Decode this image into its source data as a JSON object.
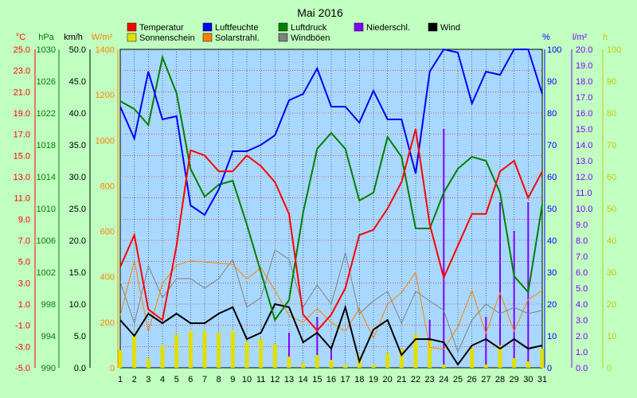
{
  "chart_data": {
    "type": "line",
    "title": "Mai 2016",
    "background": "#c0ffc0",
    "plot_background": "#a8d8ff",
    "x": [
      1,
      2,
      3,
      4,
      5,
      6,
      7,
      8,
      9,
      10,
      11,
      12,
      13,
      14,
      15,
      16,
      17,
      18,
      19,
      20,
      21,
      22,
      23,
      24,
      25,
      26,
      27,
      28,
      29,
      30,
      31
    ],
    "xlim": [
      1,
      31
    ],
    "grid": true,
    "legend": [
      {
        "label": "Temperatur",
        "color": "#ff0000"
      },
      {
        "label": "Luftfeuchte",
        "color": "#0000ff"
      },
      {
        "label": "Luftdruck",
        "color": "#008000"
      },
      {
        "label": "Niederschl.",
        "color": "#8000ff"
      },
      {
        "label": "Wind",
        "color": "#000000"
      },
      {
        "label": "Sonnenschein",
        "color": "#e0e000"
      },
      {
        "label": "Solarstrahl.",
        "color": "#ff8000"
      },
      {
        "label": "Windböen",
        "color": "#808080"
      }
    ],
    "axes": [
      {
        "unit": "°C",
        "color": "#ff0000",
        "ticks": [
          "25.0",
          "23.0",
          "21.0",
          "19.0",
          "17.0",
          "15.0",
          "13.0",
          "11.0",
          "9.0",
          "7.0",
          "5.0",
          "3.0",
          "1.0",
          "-1.0",
          "-3.0",
          "-5.0"
        ]
      },
      {
        "unit": "hPa",
        "color": "#008000",
        "ticks": [
          "1030",
          "1026",
          "1022",
          "1018",
          "1014",
          "1010",
          "1006",
          "1002",
          "998",
          "994",
          "990"
        ]
      },
      {
        "unit": "km/h",
        "color": "#000000",
        "ticks": [
          "50.0",
          "45.0",
          "40.0",
          "35.0",
          "30.0",
          "25.0",
          "20.0",
          "15.0",
          "10.0",
          "5.0",
          "0.0"
        ]
      },
      {
        "unit": "W/m²",
        "color": "#ff8000",
        "ticks": [
          "1400",
          "1200",
          "1000",
          "800",
          "600",
          "400",
          "200",
          "0"
        ]
      },
      {
        "unit": "%",
        "color": "#0000ff",
        "ticks": [
          "100",
          "90",
          "80",
          "70",
          "60",
          "50",
          "40",
          "30",
          "20",
          "10",
          "0"
        ]
      },
      {
        "unit": "l/m²",
        "color": "#8000ff",
        "ticks": [
          "20.0",
          "19.0",
          "18.0",
          "17.0",
          "16.0",
          "15.0",
          "14.0",
          "13.0",
          "12.0",
          "11.0",
          "10.0",
          "9.0",
          "8.0",
          "7.0",
          "6.0",
          "5.0",
          "4.0",
          "3.0",
          "2.0",
          "1.0",
          "0.0"
        ]
      },
      {
        "unit": "h",
        "color": "#c8c800",
        "ticks": [
          "100",
          "90",
          "80",
          "70",
          "60",
          "50",
          "40",
          "30",
          "20",
          "10",
          "0"
        ]
      }
    ],
    "series": [
      {
        "name": "Temperatur",
        "color": "#ff0000",
        "axis": "°C",
        "values": [
          4.5,
          7.5,
          0.5,
          -0.5,
          6.5,
          15.5,
          15.0,
          13.5,
          13.5,
          15.0,
          14.0,
          12.5,
          9.5,
          0,
          -1.5,
          0,
          2.5,
          7.5,
          8.0,
          10.0,
          12.5,
          17.5,
          8.5,
          3.5,
          6.5,
          9.5,
          9.5,
          13.5,
          14.5,
          11.0,
          13.5
        ]
      },
      {
        "name": "Luftfeuchte",
        "color": "#0000ff",
        "axis": "%",
        "values": [
          82,
          72,
          93,
          78,
          79,
          51,
          48,
          56,
          68,
          68,
          70,
          73,
          84,
          86,
          94,
          82,
          82,
          77,
          87,
          78,
          78,
          61,
          93,
          100,
          99,
          83,
          93,
          92,
          100,
          100,
          86
        ]
      },
      {
        "name": "Luftdruck",
        "color": "#008000",
        "axis": "hPa",
        "values": [
          1023.5,
          1022.5,
          1020.5,
          1029,
          1024.5,
          1015,
          1011.5,
          1013,
          1013.5,
          1008,
          1002,
          996,
          998.5,
          1009.5,
          1017.5,
          1019.5,
          1017.5,
          1011,
          1012,
          1019,
          1016.5,
          1007.5,
          1007.5,
          1012,
          1015,
          1016.5,
          1016,
          1012,
          1001.5,
          999.5,
          1010.5
        ]
      },
      {
        "name": "Niederschl.",
        "color": "#8000ff",
        "axis": "l/m²",
        "type": "bar",
        "values": [
          0,
          0,
          0.3,
          0,
          0,
          0,
          0,
          0,
          0,
          0,
          0,
          0,
          2.2,
          0,
          3.2,
          1.2,
          0,
          0,
          0,
          0,
          0,
          0,
          3.0,
          15.0,
          0,
          0,
          3.2,
          10.4,
          8.6,
          10.4,
          0
        ]
      },
      {
        "name": "Wind",
        "color": "#000000",
        "axis": "km/h",
        "values": [
          7.5,
          5.0,
          8.5,
          7.0,
          8.5,
          7.0,
          7.0,
          8.5,
          9.5,
          4.5,
          5.5,
          10.0,
          9.5,
          4.0,
          5.5,
          3.0,
          9.5,
          1.0,
          6.0,
          7.5,
          2.0,
          4.5,
          4.5,
          4.0,
          0.5,
          3.5,
          4.5,
          3.0,
          4.5,
          3.0,
          3.5
        ]
      },
      {
        "name": "Sonnenschein",
        "color": "#e0e000",
        "axis": "h",
        "type": "bar",
        "values": [
          5.5,
          10.5,
          3,
          7,
          10.5,
          11.5,
          11.5,
          11,
          11.5,
          8,
          9,
          7.5,
          3.5,
          1.5,
          4,
          2.5,
          1,
          4,
          1,
          4.5,
          6,
          10.5,
          8.5,
          1,
          0,
          6,
          1,
          7,
          3,
          2,
          6
        ]
      },
      {
        "name": "Solarstrahl.",
        "color": "#ff8000",
        "axis": "W/m²",
        "values": [
          230,
          470,
          160,
          370,
          450,
          470,
          465,
          460,
          455,
          390,
          440,
          340,
          230,
          200,
          260,
          200,
          160,
          260,
          130,
          280,
          330,
          420,
          90,
          80,
          180,
          340,
          150,
          330,
          160,
          300,
          340
        ]
      },
      {
        "name": "Windböen",
        "color": "#808080",
        "axis": "km/h",
        "values": [
          13.5,
          7.0,
          16.0,
          11.0,
          14.0,
          14.0,
          12.5,
          14.0,
          17.0,
          9.5,
          11.0,
          18.5,
          17.0,
          9.5,
          13.0,
          10.0,
          18.0,
          8.5,
          10.5,
          12.0,
          7.0,
          12.0,
          10.5,
          9.0,
          2.5,
          7.5,
          10.0,
          8.5,
          9.5,
          8.5,
          9.0
        ]
      }
    ]
  }
}
